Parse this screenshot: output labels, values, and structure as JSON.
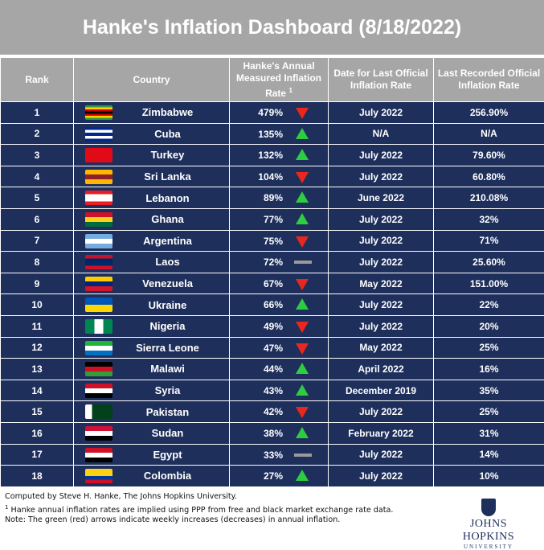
{
  "title": "Hanke's Inflation Dashboard (8/18/2022)",
  "columns": {
    "rank": "Rank",
    "country": "Country",
    "hanke_line1": "Hanke's Annual",
    "hanke_line2": "Measured Inflation",
    "hanke_line3": "Rate",
    "hanke_sup": "1",
    "date_line1": "Date for Last Official",
    "date_line2": "Inflation Rate",
    "official_line1": "Last Recorded Official",
    "official_line2": "Inflation Rate"
  },
  "chart_data": {
    "type": "table",
    "rows": [
      {
        "rank": "1",
        "country": "Zimbabwe",
        "hanke": "479%",
        "trend": "down",
        "date": "July 2022",
        "official": "256.90%",
        "flag": [
          "#319b42",
          "#ffd200",
          "#d40000",
          "#000000",
          "#d40000",
          "#ffd200",
          "#319b42"
        ]
      },
      {
        "rank": "2",
        "country": "Cuba",
        "hanke": "135%",
        "trend": "up",
        "date": "N/A",
        "official": "N/A",
        "flag": [
          "#002a8f",
          "#ffffff",
          "#002a8f",
          "#ffffff",
          "#002a8f"
        ]
      },
      {
        "rank": "3",
        "country": "Turkey",
        "hanke": "132%",
        "trend": "up",
        "date": "July 2022",
        "official": "79.60%",
        "flag": [
          "#e30a17"
        ]
      },
      {
        "rank": "4",
        "country": "Sri Lanka",
        "hanke": "104%",
        "trend": "down",
        "date": "July 2022",
        "official": "60.80%",
        "flag": [
          "#ffb700",
          "#8d2029",
          "#ffb700"
        ]
      },
      {
        "rank": "5",
        "country": "Lebanon",
        "hanke": "89%",
        "trend": "up",
        "date": "June 2022",
        "official": "210.08%",
        "flag": [
          "#ed1c24",
          "#ffffff",
          "#ffffff",
          "#ed1c24"
        ]
      },
      {
        "rank": "6",
        "country": "Ghana",
        "hanke": "77%",
        "trend": "up",
        "date": "July 2022",
        "official": "32%",
        "flag": [
          "#ce1126",
          "#fcd116",
          "#006b3f"
        ]
      },
      {
        "rank": "7",
        "country": "Argentina",
        "hanke": "75%",
        "trend": "down",
        "date": "July 2022",
        "official": "71%",
        "flag": [
          "#74acdf",
          "#ffffff",
          "#74acdf"
        ]
      },
      {
        "rank": "8",
        "country": "Laos",
        "hanke": "72%",
        "trend": "flat",
        "date": "July 2022",
        "official": "25.60%",
        "flag": [
          "#ce1126",
          "#002868",
          "#002868",
          "#ce1126"
        ]
      },
      {
        "rank": "9",
        "country": "Venezuela",
        "hanke": "67%",
        "trend": "down",
        "date": "May 2022",
        "official": "151.00%",
        "flag": [
          "#ffcc00",
          "#00247d",
          "#cf142b"
        ]
      },
      {
        "rank": "10",
        "country": "Ukraine",
        "hanke": "66%",
        "trend": "up",
        "date": "July 2022",
        "official": "22%",
        "flag": [
          "#0057b7",
          "#ffd700"
        ]
      },
      {
        "rank": "11",
        "country": "Nigeria",
        "hanke": "49%",
        "trend": "down",
        "date": "July 2022",
        "official": "20%",
        "flag": [
          "#008751",
          "#ffffff",
          "#008751"
        ],
        "flag_vertical": true
      },
      {
        "rank": "12",
        "country": "Sierra Leone",
        "hanke": "47%",
        "trend": "down",
        "date": "May 2022",
        "official": "25%",
        "flag": [
          "#1eb53a",
          "#ffffff",
          "#0072c6"
        ]
      },
      {
        "rank": "13",
        "country": "Malawi",
        "hanke": "44%",
        "trend": "up",
        "date": "April 2022",
        "official": "16%",
        "flag": [
          "#000000",
          "#ce1126",
          "#339e35"
        ]
      },
      {
        "rank": "14",
        "country": "Syria",
        "hanke": "43%",
        "trend": "up",
        "date": "December 2019",
        "official": "35%",
        "flag": [
          "#ce1126",
          "#ffffff",
          "#000000"
        ]
      },
      {
        "rank": "15",
        "country": "Pakistan",
        "hanke": "42%",
        "trend": "down",
        "date": "July 2022",
        "official": "25%",
        "flag": [
          "#ffffff",
          "#01411c",
          "#01411c",
          "#01411c"
        ],
        "flag_vertical": true
      },
      {
        "rank": "16",
        "country": "Sudan",
        "hanke": "38%",
        "trend": "up",
        "date": "February 2022",
        "official": "31%",
        "flag": [
          "#d21034",
          "#ffffff",
          "#000000"
        ]
      },
      {
        "rank": "17",
        "country": "Egypt",
        "hanke": "33%",
        "trend": "flat",
        "date": "July 2022",
        "official": "14%",
        "flag": [
          "#ce1126",
          "#ffffff",
          "#000000"
        ]
      },
      {
        "rank": "18",
        "country": "Colombia",
        "hanke": "27%",
        "trend": "up",
        "date": "July 2022",
        "official": "10%",
        "flag": [
          "#fcd116",
          "#fcd116",
          "#003893",
          "#ce1126"
        ]
      }
    ]
  },
  "colors": {
    "header_bg": "#a6a6a6",
    "row_bg": "#1e2f5c",
    "arrow_up": "#2ecc40",
    "arrow_down": "#e8281e",
    "arrow_flat": "#9a9a9a"
  },
  "footer": {
    "line1": "Computed by Steve H. Hanke, The Johns Hopkins University.",
    "line2_sup": "1",
    "line2": " Hanke annual inflation rates are implied using PPP from free and black market exchange rate data.",
    "line3": "Note: The green (red) arrows indicate weekly increases (decreases) in annual inflation."
  },
  "logo": {
    "name": "JOHNS HOPKINS",
    "sub": "UNIVERSITY"
  }
}
